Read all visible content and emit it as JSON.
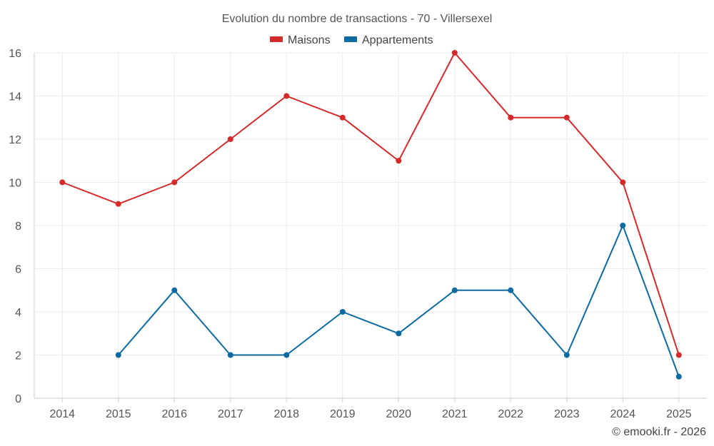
{
  "chart_data": {
    "type": "line",
    "title": "Evolution du nombre de transactions - 70 - Villersexel",
    "categories": [
      "2014",
      "2015",
      "2016",
      "2017",
      "2018",
      "2019",
      "2020",
      "2021",
      "2022",
      "2023",
      "2024",
      "2025"
    ],
    "ylim": [
      0,
      16
    ],
    "yticks": [
      0,
      2,
      4,
      6,
      8,
      10,
      12,
      14,
      16
    ],
    "grid": true,
    "legend_position": "top-center",
    "series": [
      {
        "name": "Maisons",
        "color": "#d42a2a",
        "values": [
          10,
          9,
          10,
          12,
          14,
          13,
          11,
          16,
          13,
          13,
          10,
          2
        ]
      },
      {
        "name": "Appartements",
        "color": "#0a6aa1",
        "values": [
          null,
          2,
          5,
          2,
          2,
          4,
          3,
          5,
          5,
          2,
          8,
          1
        ]
      }
    ]
  },
  "credit": "© emooki.fr - 2026"
}
